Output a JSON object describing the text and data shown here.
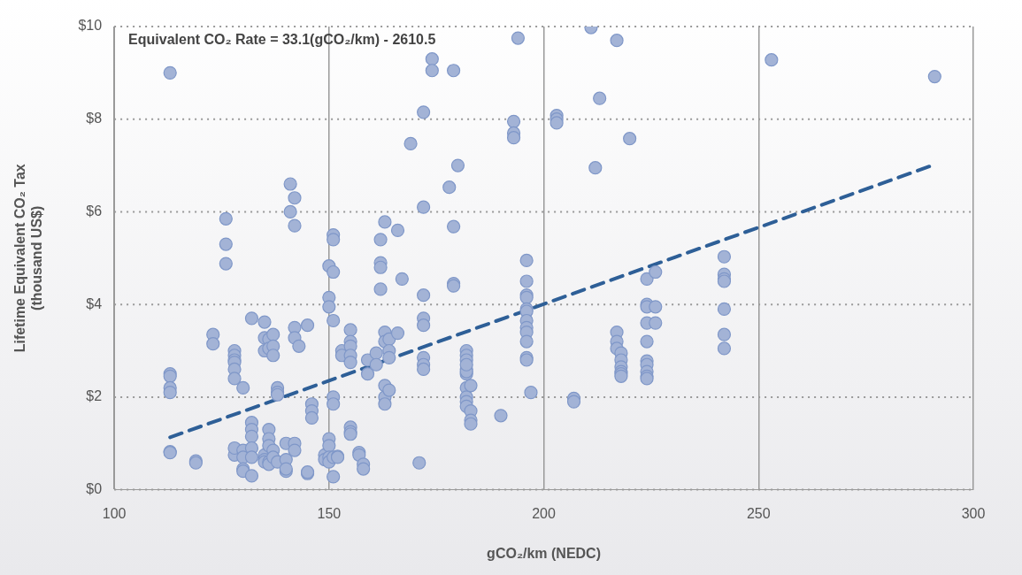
{
  "chart_data": {
    "type": "scatter",
    "xlabel": "gCO₂/km (NEDC)",
    "ylabel": "Lifetime Equivalent CO₂ Tax\n(thousand US$)",
    "annotations": [
      "Equivalent CO₂ Rate = 33.1(gCO₂/km) - 2610.5"
    ],
    "xlim": [
      100,
      300
    ],
    "xticks": [
      100,
      150,
      200,
      250,
      300
    ],
    "ylim": [
      0,
      10
    ],
    "yticks": [
      {
        "value": 0,
        "label": "$0"
      },
      {
        "value": 2,
        "label": "$2"
      },
      {
        "value": 4,
        "label": "$4"
      },
      {
        "value": 6,
        "label": "$6"
      },
      {
        "value": 8,
        "label": "$8"
      },
      {
        "value": 10,
        "label": "$10"
      }
    ],
    "grid": true,
    "marker": "circle",
    "series": [
      {
        "color": "#a3b3d6",
        "x": [
          113,
          113,
          113,
          113,
          113,
          113,
          113,
          119,
          119,
          123,
          123,
          126,
          126,
          126,
          128,
          128,
          128,
          128,
          128,
          128,
          128,
          128,
          130,
          130,
          130,
          130,
          130,
          132,
          132,
          132,
          132,
          132,
          132,
          132,
          135,
          135,
          135,
          135,
          135,
          135,
          136,
          136,
          136,
          136,
          136,
          136,
          136,
          137,
          137,
          137,
          137,
          137,
          138,
          138,
          138,
          138,
          140,
          140,
          140,
          140,
          141,
          141,
          142,
          142,
          142,
          142,
          142,
          142,
          143,
          145,
          145,
          145,
          146,
          146,
          146,
          149,
          149,
          150,
          150,
          150,
          150,
          150,
          150,
          150,
          151,
          151,
          151,
          151,
          151,
          151,
          151,
          151,
          152,
          152,
          153,
          153,
          155,
          155,
          155,
          155,
          155,
          155,
          155,
          155,
          157,
          157,
          158,
          158,
          159,
          159,
          161,
          161,
          162,
          162,
          162,
          162,
          163,
          163,
          163,
          163,
          163,
          163,
          164,
          164,
          164,
          164,
          166,
          166,
          167,
          169,
          171,
          172,
          172,
          172,
          172,
          172,
          172,
          172,
          172,
          174,
          174,
          178,
          179,
          179,
          179,
          179,
          180,
          182,
          182,
          182,
          182,
          182,
          182,
          182,
          182,
          182,
          182,
          182,
          183,
          183,
          183,
          183,
          190,
          193,
          193,
          193,
          194,
          196,
          196,
          196,
          196,
          196,
          196,
          196,
          196,
          196,
          196,
          196,
          196,
          197,
          203,
          203,
          203,
          207,
          207,
          211,
          212,
          213,
          217,
          217,
          217,
          217,
          218,
          218,
          218,
          218,
          218,
          218,
          220,
          224,
          224,
          224,
          224,
          224,
          224,
          224,
          224,
          224,
          224,
          226,
          226,
          226,
          242,
          242,
          242,
          242,
          242,
          242,
          242,
          253,
          291
        ],
        "values": [
          9.0,
          2.5,
          2.45,
          2.2,
          2.1,
          0.82,
          0.8,
          0.62,
          0.58,
          3.35,
          3.15,
          5.85,
          5.3,
          4.88,
          3.0,
          2.9,
          2.8,
          2.75,
          2.6,
          2.4,
          0.75,
          0.9,
          2.2,
          0.85,
          0.7,
          0.45,
          0.4,
          3.7,
          1.45,
          1.3,
          1.15,
          0.9,
          0.7,
          0.3,
          3.62,
          3.28,
          3.0,
          0.75,
          0.65,
          0.6,
          3.25,
          3.05,
          1.3,
          1.1,
          0.95,
          0.6,
          0.55,
          3.35,
          3.1,
          2.9,
          0.85,
          0.7,
          2.2,
          2.1,
          2.05,
          0.6,
          1.0,
          0.65,
          0.4,
          0.45,
          6.6,
          6.0,
          6.3,
          5.7,
          3.5,
          3.28,
          1.0,
          0.85,
          3.1,
          3.55,
          0.35,
          0.38,
          1.85,
          1.7,
          1.55,
          0.75,
          0.65,
          4.83,
          4.15,
          3.95,
          1.1,
          0.95,
          0.7,
          0.6,
          5.5,
          5.4,
          4.7,
          3.65,
          2.0,
          1.85,
          0.28,
          0.7,
          0.72,
          0.7,
          3.0,
          2.9,
          3.45,
          3.2,
          3.1,
          2.9,
          2.75,
          1.35,
          1.25,
          1.2,
          0.8,
          0.75,
          0.55,
          0.45,
          2.5,
          2.8,
          2.95,
          2.7,
          5.4,
          4.9,
          4.8,
          4.33,
          3.4,
          3.2,
          2.25,
          2.0,
          1.85,
          5.78,
          3.25,
          3.0,
          2.85,
          2.15,
          3.38,
          5.6,
          4.55,
          7.47,
          0.58,
          8.15,
          6.1,
          4.2,
          3.7,
          3.55,
          2.85,
          2.7,
          2.6,
          9.3,
          9.05,
          6.53,
          9.05,
          5.68,
          4.45,
          4.4,
          7.0,
          3.0,
          2.9,
          2.8,
          2.6,
          2.5,
          2.2,
          2.0,
          1.9,
          1.8,
          2.55,
          2.7,
          2.25,
          1.7,
          1.5,
          1.42,
          1.6,
          7.95,
          7.7,
          7.6,
          9.75,
          4.95,
          4.5,
          4.2,
          4.15,
          3.9,
          3.85,
          3.65,
          3.5,
          3.4,
          3.2,
          2.85,
          2.8,
          2.1,
          8.08,
          8.0,
          7.92,
          1.97,
          1.9,
          9.98,
          6.95,
          8.45,
          9.7,
          3.4,
          3.2,
          3.05,
          2.95,
          2.8,
          2.65,
          2.55,
          2.5,
          2.45,
          7.58,
          4.55,
          4.0,
          3.95,
          3.6,
          3.2,
          2.78,
          2.7,
          2.55,
          2.45,
          2.4,
          4.7,
          3.95,
          3.6,
          5.03,
          4.65,
          4.55,
          4.5,
          3.9,
          3.35,
          3.05,
          9.28,
          8.92
        ]
      },
      {
        "type": "line",
        "color": "#2e5f97",
        "line_style": "dashed",
        "marker": "none",
        "x": [
          113,
          291
        ],
        "values": [
          1.13,
          7.02
        ]
      }
    ]
  }
}
